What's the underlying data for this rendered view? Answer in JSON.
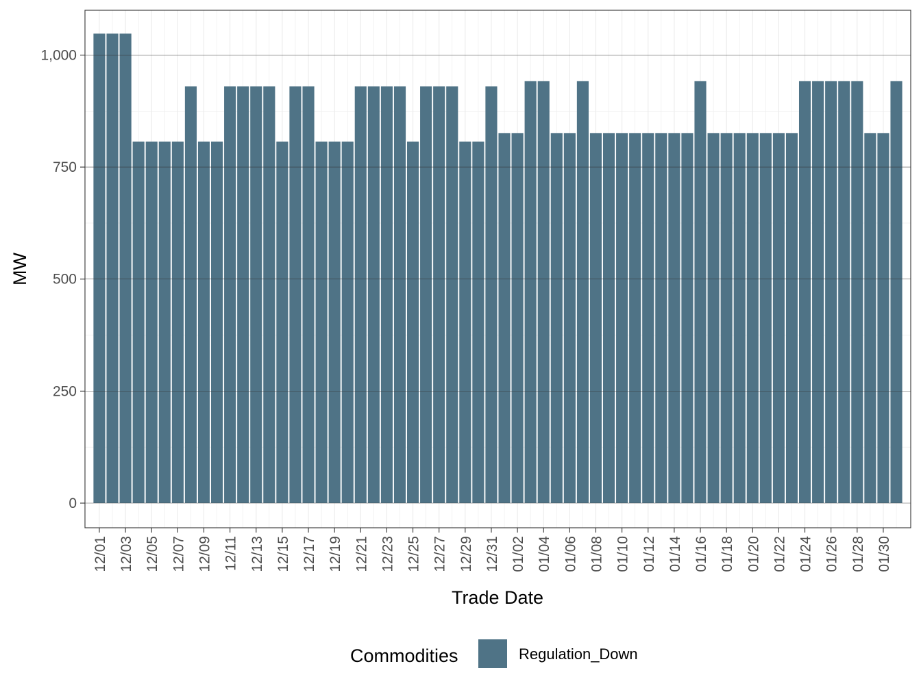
{
  "chart_data": {
    "type": "bar",
    "xlabel": "Trade Date",
    "ylabel": "MW",
    "ylim": [
      -55,
      1100
    ],
    "y_ticks": [
      0,
      250,
      500,
      750,
      1000
    ],
    "y_tick_labels": [
      "0",
      "250",
      "500",
      "750",
      "1,000"
    ],
    "categories": [
      "12/01",
      "12/02",
      "12/03",
      "12/04",
      "12/05",
      "12/06",
      "12/07",
      "12/08",
      "12/09",
      "12/10",
      "12/11",
      "12/12",
      "12/13",
      "12/14",
      "12/15",
      "12/16",
      "12/17",
      "12/18",
      "12/19",
      "12/20",
      "12/21",
      "12/22",
      "12/23",
      "12/24",
      "12/25",
      "12/26",
      "12/27",
      "12/28",
      "12/29",
      "12/30",
      "12/31",
      "01/01",
      "01/02",
      "01/03",
      "01/04",
      "01/05",
      "01/06",
      "01/07",
      "01/08",
      "01/09",
      "01/10",
      "01/11",
      "01/12",
      "01/13",
      "01/14",
      "01/15",
      "01/16",
      "01/17",
      "01/18",
      "01/19",
      "01/20",
      "01/21",
      "01/22",
      "01/23",
      "01/24",
      "01/25",
      "01/26",
      "01/27",
      "01/28",
      "01/29",
      "01/30",
      "01/31"
    ],
    "x_tick_labels": [
      "12/01",
      "12/03",
      "12/05",
      "12/07",
      "12/09",
      "12/11",
      "12/13",
      "12/15",
      "12/17",
      "12/19",
      "12/21",
      "12/23",
      "12/25",
      "12/27",
      "12/29",
      "12/31",
      "01/02",
      "01/04",
      "01/06",
      "01/08",
      "01/10",
      "01/12",
      "01/14",
      "01/16",
      "01/18",
      "01/20",
      "01/22",
      "01/24",
      "01/26",
      "01/28",
      "01/30"
    ],
    "series": [
      {
        "name": "Regulation_Down",
        "color": "#4f7386",
        "values": [
          1048,
          1048,
          1048,
          807,
          807,
          807,
          807,
          930,
          807,
          807,
          930,
          930,
          930,
          930,
          807,
          930,
          930,
          807,
          807,
          807,
          930,
          930,
          930,
          930,
          807,
          930,
          930,
          930,
          807,
          807,
          930,
          826,
          826,
          942,
          942,
          826,
          826,
          942,
          826,
          826,
          826,
          826,
          826,
          826,
          826,
          826,
          942,
          826,
          826,
          826,
          826,
          826,
          826,
          826,
          942,
          942,
          942,
          942,
          942,
          826,
          826,
          942
        ]
      }
    ],
    "legend": {
      "title": "Commodities",
      "position": "bottom",
      "items": [
        "Regulation_Down"
      ]
    }
  }
}
